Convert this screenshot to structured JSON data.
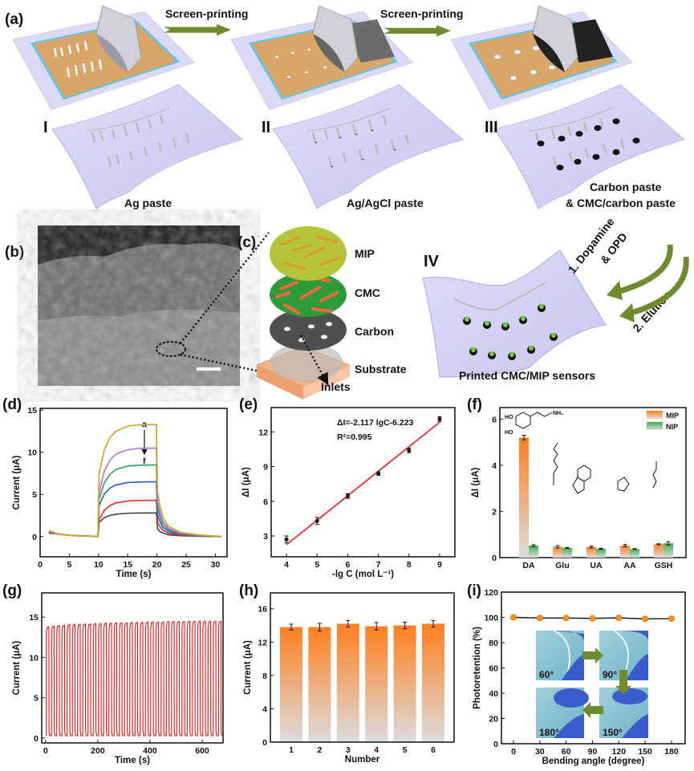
{
  "panel_labels": {
    "a": "(a)",
    "b": "(b)",
    "c": "(c)",
    "d": "(d)",
    "e": "(e)",
    "f": "(f)",
    "g": "(g)",
    "h": "(h)",
    "i": "(i)"
  },
  "panel_a": {
    "arrow_label_1": "Screen-printing",
    "arrow_label_2": "Screen-printing",
    "steps": [
      {
        "numeral": "I",
        "caption": "Ag paste"
      },
      {
        "numeral": "II",
        "caption": "Ag/AgCl paste"
      },
      {
        "numeral": "III",
        "caption_line1": "Carbon paste",
        "caption_line2": "& CMC/carbon paste"
      }
    ],
    "colors": {
      "board": "#d9d9f5",
      "mask": "#d9a66a",
      "frame": "#5cc6e8",
      "arrow": "#6e8b2e"
    }
  },
  "panel_c": {
    "layers": [
      "MIP",
      "CMC",
      "Carbon",
      "Substrate"
    ],
    "inlets": "Inlets",
    "colors": {
      "mip": "#b5c43a",
      "cmc": "#2e9b3a",
      "cmc_rods": "#ef6a3a",
      "carbon": "#555555",
      "substrate": "#f4b48a"
    }
  },
  "panel_iv": {
    "numeral": "IV",
    "caption": "Printed CMC/MIP sensors",
    "step1_line1": "1. Dopamine",
    "step1_line2": "& OPD",
    "step2": "2. Elution"
  },
  "chart_data": [
    {
      "panel": "d",
      "type": "line",
      "xlabel": "Time (s)",
      "ylabel": "Current (μA)",
      "xlim": [
        0,
        32
      ],
      "ylim": [
        -2.4,
        15.2
      ],
      "xticks": [
        0,
        5,
        10,
        15,
        20,
        25,
        30
      ],
      "yticks": [
        0,
        5,
        10,
        15
      ],
      "annotation": {
        "top": "a",
        "bottom": "f"
      },
      "x": [
        1.5,
        3,
        5,
        7,
        9.9,
        10.1,
        11,
        12,
        13,
        15,
        17,
        19.9,
        20.1,
        20.5,
        21,
        22,
        24,
        27,
        31
      ],
      "series": [
        {
          "color": "#d4a017",
          "values": [
            0.7,
            0.35,
            0.15,
            0.07,
            0.03,
            7.5,
            10.3,
            11.8,
            12.5,
            13.1,
            13.25,
            13.3,
            5.3,
            3.7,
            2.3,
            1.2,
            0.5,
            0.2,
            0
          ]
        },
        {
          "color": "#b46ee6",
          "values": [
            0.6,
            0.3,
            0.15,
            0.07,
            0.03,
            5.2,
            7.8,
            9.1,
            9.8,
            10.3,
            10.45,
            10.5,
            4.2,
            2.9,
            1.8,
            0.95,
            0.4,
            0.15,
            0
          ]
        },
        {
          "color": "#2ca05a",
          "values": [
            0.5,
            0.3,
            0.15,
            0.07,
            0.03,
            4.5,
            6.4,
            7.4,
            7.96,
            8.36,
            8.46,
            8.5,
            3.4,
            2.4,
            1.45,
            0.77,
            0.34,
            0.13,
            0
          ]
        },
        {
          "color": "#1f5fd6",
          "values": [
            0.5,
            0.3,
            0.15,
            0.07,
            0.03,
            3.7,
            5.06,
            5.76,
            6.12,
            6.4,
            6.47,
            6.5,
            2.6,
            1.8,
            1.1,
            0.6,
            0.26,
            0.1,
            0
          ]
        },
        {
          "color": "#e82828",
          "values": [
            0.5,
            0.3,
            0.15,
            0.07,
            0.03,
            2.0,
            3.12,
            3.69,
            3.99,
            4.22,
            4.28,
            4.3,
            1.7,
            1.2,
            0.73,
            0.39,
            0.17,
            0.06,
            0
          ]
        },
        {
          "color": "#444444",
          "values": [
            0.4,
            0.3,
            0.15,
            0.07,
            0.03,
            1.7,
            2.24,
            2.51,
            2.65,
            2.76,
            2.79,
            2.8,
            0.9,
            0.6,
            0.4,
            0.2,
            0.1,
            0.04,
            0
          ]
        }
      ]
    },
    {
      "panel": "e",
      "type": "scatter",
      "xlabel": "-lg C (mol L⁻¹)",
      "ylabel": "ΔI (μA)",
      "xlim": [
        3.5,
        9.5
      ],
      "ylim": [
        1.2,
        14.1
      ],
      "xticks": [
        4,
        5,
        6,
        7,
        8,
        9
      ],
      "yticks": [
        3,
        6,
        9,
        12
      ],
      "x": [
        4,
        5,
        6,
        7,
        8,
        9
      ],
      "y": [
        2.7,
        4.3,
        6.45,
        8.4,
        10.4,
        13.1
      ],
      "error": [
        0.3,
        0.3,
        0.2,
        0.15,
        0.2,
        0.2
      ],
      "fit": {
        "slope": 2.117,
        "intercept": -6.223,
        "color": "#ee1c1c"
      },
      "equation": "ΔI=-2.117 lgC-6.223",
      "r2": "R²=0.995"
    },
    {
      "panel": "f",
      "type": "bar",
      "ylabel": "ΔI (μA)",
      "ylim": [
        0,
        6.5
      ],
      "yticks": [
        0,
        2,
        4,
        6
      ],
      "categories": [
        "DA",
        "Glu",
        "UA",
        "AA",
        "GSH"
      ],
      "series": [
        {
          "name": "MIP",
          "color": "#ff7f1e",
          "values": [
            5.2,
            0.47,
            0.46,
            0.52,
            0.58
          ],
          "error": [
            0.1,
            0.05,
            0.04,
            0.05,
            0.02
          ]
        },
        {
          "name": "NIP",
          "color": "#3cb04a",
          "values": [
            0.52,
            0.42,
            0.38,
            0.37,
            0.62
          ],
          "error": [
            0.04,
            0.02,
            0.02,
            0.02,
            0.07
          ]
        }
      ],
      "structure_labels": {
        "ho1": "HO",
        "ho2": "HO",
        "nh2": "NH₂"
      },
      "legend": "top-right"
    },
    {
      "panel": "g",
      "type": "line",
      "xlabel": "Time (s)",
      "ylabel": "Current (μA)",
      "xlim": [
        -15,
        680
      ],
      "ylim": [
        -0.6,
        18
      ],
      "xticks": [
        0,
        200,
        400,
        600
      ],
      "yticks": [
        0,
        5,
        10,
        15
      ],
      "color": "#ee1111",
      "first_pulse_start_s": 2.5,
      "cycle_period_s": 20,
      "pulse_on_s": 10,
      "baseline": 0.3,
      "peak_currents": [
        13.8,
        13.9,
        13.95,
        14.0,
        14.05,
        14.1,
        14.1,
        14.15,
        14.15,
        14.2,
        14.2,
        14.25,
        14.25,
        14.3,
        14.3,
        14.3,
        14.35,
        14.35,
        14.35,
        14.4,
        14.4,
        14.4,
        14.4,
        14.45,
        14.45,
        14.45,
        14.45,
        14.5,
        14.5,
        14.5,
        14.5,
        14.5,
        14.5,
        14.5
      ]
    },
    {
      "panel": "h",
      "type": "bar",
      "xlabel": "Number",
      "ylabel": "Current (μA)",
      "ylim": [
        0,
        17.9
      ],
      "yticks": [
        0,
        4,
        8,
        12,
        16
      ],
      "categories": [
        "1",
        "2",
        "3",
        "4",
        "5",
        "6"
      ],
      "values": [
        13.8,
        13.8,
        14.2,
        13.9,
        14.0,
        14.2
      ],
      "error": [
        0.35,
        0.45,
        0.4,
        0.45,
        0.4,
        0.4
      ],
      "color": "#ff7f1e"
    },
    {
      "panel": "i",
      "type": "line",
      "xlabel": "Bending angle (degree)",
      "ylabel": "Photoretention (%)",
      "xlim": [
        -13.7,
        195.6
      ],
      "ylim": [
        0,
        120
      ],
      "xticks": [
        0,
        30,
        60,
        90,
        120,
        150,
        180
      ],
      "yticks": [
        0,
        20,
        40,
        60,
        80,
        100,
        120
      ],
      "x": [
        0,
        30,
        60,
        90,
        120,
        150,
        180
      ],
      "y": [
        100,
        99.5,
        99.5,
        99.2,
        99.6,
        98.8,
        99.0
      ],
      "marker_color": "#f7941d",
      "insets": [
        "60°",
        "90°",
        "180°",
        "150°"
      ]
    }
  ]
}
